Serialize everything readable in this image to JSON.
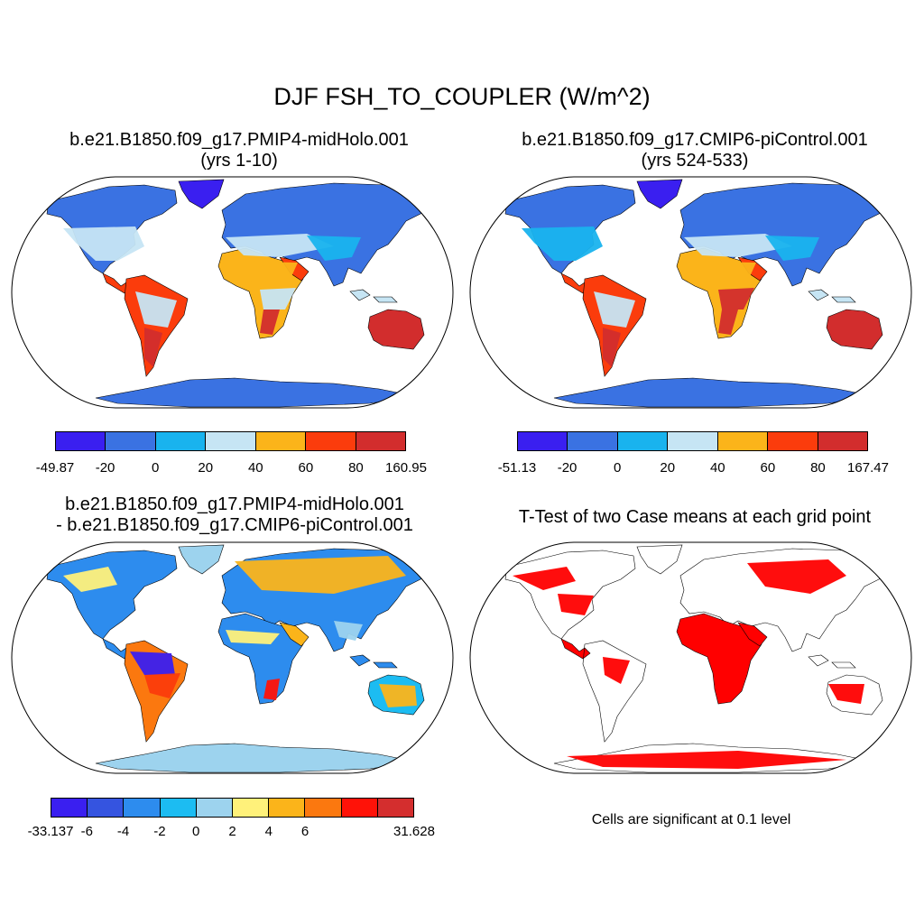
{
  "title": "DJF FSH_TO_COUPLER (W/m^2)",
  "panels": {
    "top_left": {
      "title_line1": "b.e21.B1850.f09_g17.PMIP4-midHolo.001",
      "title_line2": "(yrs 1-10)",
      "colorbar": {
        "labels": [
          "-49.87",
          "-20",
          "0",
          "20",
          "40",
          "60",
          "80",
          "160.95"
        ],
        "colors": [
          "#3a1ff0",
          "#3a72e2",
          "#19b3ee",
          "#c6e5f4",
          "#fbb41a",
          "#fb3c0c",
          "#d22d2d"
        ]
      }
    },
    "top_right": {
      "title_line1": "b.e21.B1850.f09_g17.CMIP6-piControl.001",
      "title_line2": "(yrs 524-533)",
      "colorbar": {
        "labels": [
          "-51.13",
          "-20",
          "0",
          "20",
          "40",
          "60",
          "80",
          "167.47"
        ],
        "colors": [
          "#3a1ff0",
          "#3a72e2",
          "#19b3ee",
          "#c6e5f4",
          "#fbb41a",
          "#fb3c0c",
          "#d22d2d"
        ]
      }
    },
    "bottom_left": {
      "title_line1": "b.e21.B1850.f09_g17.PMIP4-midHolo.001",
      "title_line2": "- b.e21.B1850.f09_g17.CMIP6-piControl.001",
      "colorbar": {
        "labels": [
          "-33.137",
          "-6",
          "-4",
          "-2",
          "0",
          "2",
          "4",
          "6",
          "31.628"
        ],
        "colors": [
          "#3a1ff0",
          "#3554e0",
          "#2d8cee",
          "#1cbcf2",
          "#9dd3ee",
          "#fff17a",
          "#fbb41a",
          "#fb780f",
          "#ff1208",
          "#d42e2e"
        ]
      }
    },
    "bottom_right": {
      "title": "T-Test of two Case means at each grid point",
      "note": "Cells are significant at 0.1 level",
      "significant_color": "#ff0000"
    }
  }
}
